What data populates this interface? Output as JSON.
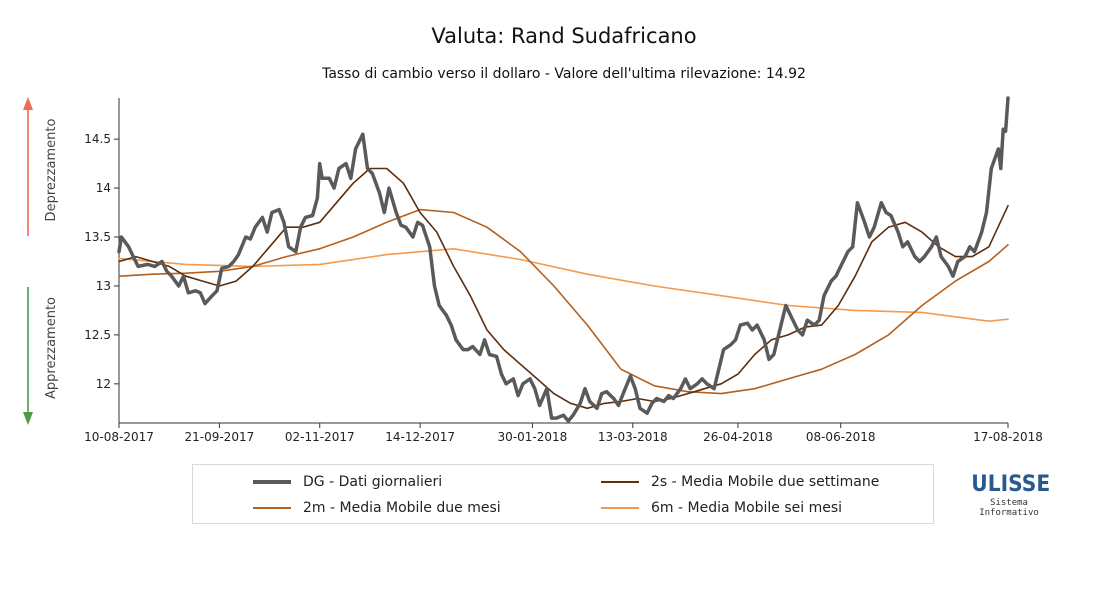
{
  "title": "Valuta: Rand Sudafricano",
  "subtitle": "Tasso di cambio verso il dollaro - Valore dell'ultima rilevazione: 14.92",
  "side_labels": {
    "up": "Deprezzamento",
    "down": "Apprezzamento"
  },
  "colors": {
    "arrow_up": "#f06a55",
    "arrow_down": "#4a9a4a",
    "axis": "#333333"
  },
  "logo": {
    "main": "ULISSE",
    "sub1": "Sistema",
    "sub2": "Informativo"
  },
  "legend": [
    {
      "key": "dg",
      "label": "DG - Dati giornalieri",
      "color": "#5a5a5a"
    },
    {
      "key": "ma2w",
      "label": "2s - Media Mobile due settimane",
      "color": "#5c2e0e"
    },
    {
      "key": "ma2m",
      "label": "2m - Media Mobile due mesi",
      "color": "#b5601e"
    },
    {
      "key": "ma6m",
      "label": "6m - Media Mobile sei mesi",
      "color": "#f39a4e"
    }
  ],
  "chart_data": {
    "type": "line",
    "title": "Valuta: Rand Sudafricano",
    "subtitle": "Tasso di cambio verso il dollaro - Valore dell'ultima rilevazione: 14.92",
    "xlim": [
      "2017-08-10",
      "2018-08-17"
    ],
    "ylim": [
      11.6,
      14.92
    ],
    "x_ticks": [
      "10-08-2017",
      "21-09-2017",
      "02-11-2017",
      "14-12-2017",
      "30-01-2018",
      "13-03-2018",
      "26-04-2018",
      "08-06-2018",
      "17-08-2018"
    ],
    "y_ticks": [
      12,
      12.5,
      13,
      13.5,
      14,
      14.5
    ],
    "series": [
      {
        "key": "dg",
        "name": "DG - Dati giornalieri",
        "color": "#5a5a5a",
        "width": 3.5,
        "points": [
          [
            "2017-08-10",
            13.35
          ],
          [
            "2017-08-11",
            13.5
          ],
          [
            "2017-08-14",
            13.4
          ],
          [
            "2017-08-16",
            13.3
          ],
          [
            "2017-08-18",
            13.2
          ],
          [
            "2017-08-22",
            13.22
          ],
          [
            "2017-08-25",
            13.2
          ],
          [
            "2017-08-28",
            13.25
          ],
          [
            "2017-08-30",
            13.15
          ],
          [
            "2017-09-01",
            13.1
          ],
          [
            "2017-09-04",
            13.0
          ],
          [
            "2017-09-06",
            13.1
          ],
          [
            "2017-09-08",
            12.93
          ],
          [
            "2017-09-11",
            12.95
          ],
          [
            "2017-09-13",
            12.93
          ],
          [
            "2017-09-15",
            12.82
          ],
          [
            "2017-09-18",
            12.9
          ],
          [
            "2017-09-20",
            12.95
          ],
          [
            "2017-09-22",
            13.18
          ],
          [
            "2017-09-25",
            13.2
          ],
          [
            "2017-09-27",
            13.25
          ],
          [
            "2017-09-29",
            13.32
          ],
          [
            "2017-10-02",
            13.5
          ],
          [
            "2017-10-04",
            13.48
          ],
          [
            "2017-10-06",
            13.6
          ],
          [
            "2017-10-09",
            13.7
          ],
          [
            "2017-10-11",
            13.55
          ],
          [
            "2017-10-13",
            13.75
          ],
          [
            "2017-10-16",
            13.78
          ],
          [
            "2017-10-18",
            13.65
          ],
          [
            "2017-10-20",
            13.4
          ],
          [
            "2017-10-23",
            13.35
          ],
          [
            "2017-10-25",
            13.6
          ],
          [
            "2017-10-27",
            13.7
          ],
          [
            "2017-10-30",
            13.72
          ],
          [
            "2017-11-01",
            13.9
          ],
          [
            "2017-11-02",
            14.25
          ],
          [
            "2017-11-03",
            14.1
          ],
          [
            "2017-11-06",
            14.1
          ],
          [
            "2017-11-08",
            14.0
          ],
          [
            "2017-11-10",
            14.2
          ],
          [
            "2017-11-13",
            14.25
          ],
          [
            "2017-11-15",
            14.1
          ],
          [
            "2017-11-17",
            14.4
          ],
          [
            "2017-11-20",
            14.55
          ],
          [
            "2017-11-22",
            14.2
          ],
          [
            "2017-11-24",
            14.15
          ],
          [
            "2017-11-27",
            13.95
          ],
          [
            "2017-11-29",
            13.75
          ],
          [
            "2017-12-01",
            14.0
          ],
          [
            "2017-12-04",
            13.75
          ],
          [
            "2017-12-06",
            13.62
          ],
          [
            "2017-12-08",
            13.6
          ],
          [
            "2017-12-11",
            13.5
          ],
          [
            "2017-12-13",
            13.65
          ],
          [
            "2017-12-15",
            13.62
          ],
          [
            "2017-12-18",
            13.4
          ],
          [
            "2017-12-20",
            13.0
          ],
          [
            "2017-12-22",
            12.8
          ],
          [
            "2017-12-25",
            12.7
          ],
          [
            "2017-12-27",
            12.6
          ],
          [
            "2017-12-29",
            12.45
          ],
          [
            "2018-01-01",
            12.35
          ],
          [
            "2018-01-03",
            12.35
          ],
          [
            "2018-01-05",
            12.38
          ],
          [
            "2018-01-08",
            12.3
          ],
          [
            "2018-01-10",
            12.45
          ],
          [
            "2018-01-12",
            12.3
          ],
          [
            "2018-01-15",
            12.28
          ],
          [
            "2018-01-17",
            12.1
          ],
          [
            "2018-01-19",
            12.0
          ],
          [
            "2018-01-22",
            12.05
          ],
          [
            "2018-01-24",
            11.88
          ],
          [
            "2018-01-26",
            12.0
          ],
          [
            "2018-01-29",
            12.05
          ],
          [
            "2018-01-31",
            11.95
          ],
          [
            "2018-02-02",
            11.78
          ],
          [
            "2018-02-05",
            11.95
          ],
          [
            "2018-02-07",
            11.65
          ],
          [
            "2018-02-09",
            11.65
          ],
          [
            "2018-02-12",
            11.68
          ],
          [
            "2018-02-14",
            11.62
          ],
          [
            "2018-02-16",
            11.68
          ],
          [
            "2018-02-19",
            11.8
          ],
          [
            "2018-02-21",
            11.95
          ],
          [
            "2018-02-23",
            11.82
          ],
          [
            "2018-02-26",
            11.75
          ],
          [
            "2018-02-28",
            11.9
          ],
          [
            "2018-03-02",
            11.92
          ],
          [
            "2018-03-05",
            11.85
          ],
          [
            "2018-03-07",
            11.78
          ],
          [
            "2018-03-09",
            11.9
          ],
          [
            "2018-03-12",
            12.08
          ],
          [
            "2018-03-14",
            11.95
          ],
          [
            "2018-03-16",
            11.75
          ],
          [
            "2018-03-19",
            11.7
          ],
          [
            "2018-03-21",
            11.8
          ],
          [
            "2018-03-23",
            11.85
          ],
          [
            "2018-03-26",
            11.82
          ],
          [
            "2018-03-28",
            11.88
          ],
          [
            "2018-03-30",
            11.85
          ],
          [
            "2018-04-02",
            11.95
          ],
          [
            "2018-04-04",
            12.05
          ],
          [
            "2018-04-06",
            11.95
          ],
          [
            "2018-04-09",
            12.0
          ],
          [
            "2018-04-11",
            12.05
          ],
          [
            "2018-04-13",
            12.0
          ],
          [
            "2018-04-16",
            11.95
          ],
          [
            "2018-04-18",
            12.15
          ],
          [
            "2018-04-20",
            12.35
          ],
          [
            "2018-04-23",
            12.4
          ],
          [
            "2018-04-25",
            12.45
          ],
          [
            "2018-04-27",
            12.6
          ],
          [
            "2018-04-30",
            12.62
          ],
          [
            "2018-05-02",
            12.55
          ],
          [
            "2018-05-04",
            12.6
          ],
          [
            "2018-05-07",
            12.45
          ],
          [
            "2018-05-09",
            12.25
          ],
          [
            "2018-05-11",
            12.3
          ],
          [
            "2018-05-14",
            12.6
          ],
          [
            "2018-05-16",
            12.8
          ],
          [
            "2018-05-18",
            12.7
          ],
          [
            "2018-05-21",
            12.55
          ],
          [
            "2018-05-23",
            12.5
          ],
          [
            "2018-05-25",
            12.65
          ],
          [
            "2018-05-28",
            12.6
          ],
          [
            "2018-05-30",
            12.65
          ],
          [
            "2018-06-01",
            12.9
          ],
          [
            "2018-06-04",
            13.05
          ],
          [
            "2018-06-06",
            13.1
          ],
          [
            "2018-06-08",
            13.2
          ],
          [
            "2018-06-11",
            13.35
          ],
          [
            "2018-06-13",
            13.4
          ],
          [
            "2018-06-15",
            13.85
          ],
          [
            "2018-06-18",
            13.65
          ],
          [
            "2018-06-20",
            13.5
          ],
          [
            "2018-06-22",
            13.6
          ],
          [
            "2018-06-25",
            13.85
          ],
          [
            "2018-06-27",
            13.75
          ],
          [
            "2018-06-29",
            13.72
          ],
          [
            "2018-07-02",
            13.55
          ],
          [
            "2018-07-04",
            13.4
          ],
          [
            "2018-07-06",
            13.45
          ],
          [
            "2018-07-09",
            13.3
          ],
          [
            "2018-07-11",
            13.25
          ],
          [
            "2018-07-13",
            13.3
          ],
          [
            "2018-07-16",
            13.4
          ],
          [
            "2018-07-18",
            13.5
          ],
          [
            "2018-07-20",
            13.3
          ],
          [
            "2018-07-23",
            13.2
          ],
          [
            "2018-07-25",
            13.1
          ],
          [
            "2018-07-27",
            13.25
          ],
          [
            "2018-07-30",
            13.3
          ],
          [
            "2018-08-01",
            13.4
          ],
          [
            "2018-08-03",
            13.35
          ],
          [
            "2018-08-06",
            13.55
          ],
          [
            "2018-08-08",
            13.75
          ],
          [
            "2018-08-10",
            14.2
          ],
          [
            "2018-08-13",
            14.4
          ],
          [
            "2018-08-14",
            14.2
          ],
          [
            "2018-08-15",
            14.6
          ],
          [
            "2018-08-16",
            14.58
          ],
          [
            "2018-08-17",
            14.92
          ]
        ]
      },
      {
        "key": "ma2w",
        "name": "2s - Media Mobile due settimane",
        "color": "#5c2e0e",
        "width": 1.6,
        "points": [
          [
            "2017-08-10",
            13.25
          ],
          [
            "2017-08-17",
            13.3
          ],
          [
            "2017-08-24",
            13.25
          ],
          [
            "2017-08-31",
            13.2
          ],
          [
            "2017-09-07",
            13.1
          ],
          [
            "2017-09-14",
            13.05
          ],
          [
            "2017-09-21",
            13.0
          ],
          [
            "2017-09-28",
            13.05
          ],
          [
            "2017-10-05",
            13.2
          ],
          [
            "2017-10-12",
            13.4
          ],
          [
            "2017-10-19",
            13.6
          ],
          [
            "2017-10-26",
            13.6
          ],
          [
            "2017-11-02",
            13.65
          ],
          [
            "2017-11-09",
            13.85
          ],
          [
            "2017-11-16",
            14.05
          ],
          [
            "2017-11-23",
            14.2
          ],
          [
            "2017-11-30",
            14.2
          ],
          [
            "2017-12-07",
            14.05
          ],
          [
            "2017-12-14",
            13.75
          ],
          [
            "2017-12-21",
            13.55
          ],
          [
            "2017-12-28",
            13.2
          ],
          [
            "2018-01-04",
            12.9
          ],
          [
            "2018-01-11",
            12.55
          ],
          [
            "2018-01-18",
            12.35
          ],
          [
            "2018-01-25",
            12.2
          ],
          [
            "2018-02-01",
            12.05
          ],
          [
            "2018-02-08",
            11.9
          ],
          [
            "2018-02-15",
            11.8
          ],
          [
            "2018-02-22",
            11.75
          ],
          [
            "2018-03-01",
            11.8
          ],
          [
            "2018-03-08",
            11.82
          ],
          [
            "2018-03-15",
            11.85
          ],
          [
            "2018-03-22",
            11.82
          ],
          [
            "2018-03-29",
            11.85
          ],
          [
            "2018-04-05",
            11.9
          ],
          [
            "2018-04-12",
            11.95
          ],
          [
            "2018-04-19",
            12.0
          ],
          [
            "2018-04-26",
            12.1
          ],
          [
            "2018-05-03",
            12.3
          ],
          [
            "2018-05-10",
            12.45
          ],
          [
            "2018-05-17",
            12.5
          ],
          [
            "2018-05-24",
            12.58
          ],
          [
            "2018-05-31",
            12.6
          ],
          [
            "2018-06-07",
            12.8
          ],
          [
            "2018-06-14",
            13.1
          ],
          [
            "2018-06-21",
            13.45
          ],
          [
            "2018-06-28",
            13.6
          ],
          [
            "2018-07-05",
            13.65
          ],
          [
            "2018-07-12",
            13.55
          ],
          [
            "2018-07-19",
            13.4
          ],
          [
            "2018-07-26",
            13.3
          ],
          [
            "2018-08-02",
            13.3
          ],
          [
            "2018-08-09",
            13.4
          ],
          [
            "2018-08-17",
            13.82
          ]
        ]
      },
      {
        "key": "ma2m",
        "name": "2m - Media Mobile due mesi",
        "color": "#b5601e",
        "width": 1.6,
        "points": [
          [
            "2017-08-10",
            13.1
          ],
          [
            "2017-08-24",
            13.12
          ],
          [
            "2017-09-07",
            13.13
          ],
          [
            "2017-09-21",
            13.15
          ],
          [
            "2017-10-05",
            13.2
          ],
          [
            "2017-10-19",
            13.3
          ],
          [
            "2017-11-02",
            13.38
          ],
          [
            "2017-11-16",
            13.5
          ],
          [
            "2017-11-30",
            13.65
          ],
          [
            "2017-12-14",
            13.78
          ],
          [
            "2017-12-28",
            13.75
          ],
          [
            "2018-01-11",
            13.6
          ],
          [
            "2018-01-25",
            13.35
          ],
          [
            "2018-02-08",
            13.0
          ],
          [
            "2018-02-22",
            12.6
          ],
          [
            "2018-03-08",
            12.15
          ],
          [
            "2018-03-22",
            11.98
          ],
          [
            "2018-04-05",
            11.92
          ],
          [
            "2018-04-19",
            11.9
          ],
          [
            "2018-05-03",
            11.95
          ],
          [
            "2018-05-17",
            12.05
          ],
          [
            "2018-05-31",
            12.15
          ],
          [
            "2018-06-14",
            12.3
          ],
          [
            "2018-06-28",
            12.5
          ],
          [
            "2018-07-12",
            12.8
          ],
          [
            "2018-07-26",
            13.05
          ],
          [
            "2018-08-09",
            13.25
          ],
          [
            "2018-08-17",
            13.42
          ]
        ]
      },
      {
        "key": "ma6m",
        "name": "6m - Media Mobile sei mesi",
        "color": "#f39a4e",
        "width": 1.6,
        "points": [
          [
            "2017-08-10",
            13.28
          ],
          [
            "2017-09-07",
            13.22
          ],
          [
            "2017-10-05",
            13.2
          ],
          [
            "2017-11-02",
            13.22
          ],
          [
            "2017-11-30",
            13.32
          ],
          [
            "2017-12-28",
            13.38
          ],
          [
            "2018-01-25",
            13.27
          ],
          [
            "2018-02-22",
            13.12
          ],
          [
            "2018-03-22",
            13.0
          ],
          [
            "2018-04-19",
            12.9
          ],
          [
            "2018-05-17",
            12.8
          ],
          [
            "2018-06-14",
            12.75
          ],
          [
            "2018-07-12",
            12.73
          ],
          [
            "2018-08-09",
            12.64
          ],
          [
            "2018-08-17",
            12.66
          ]
        ]
      }
    ]
  }
}
